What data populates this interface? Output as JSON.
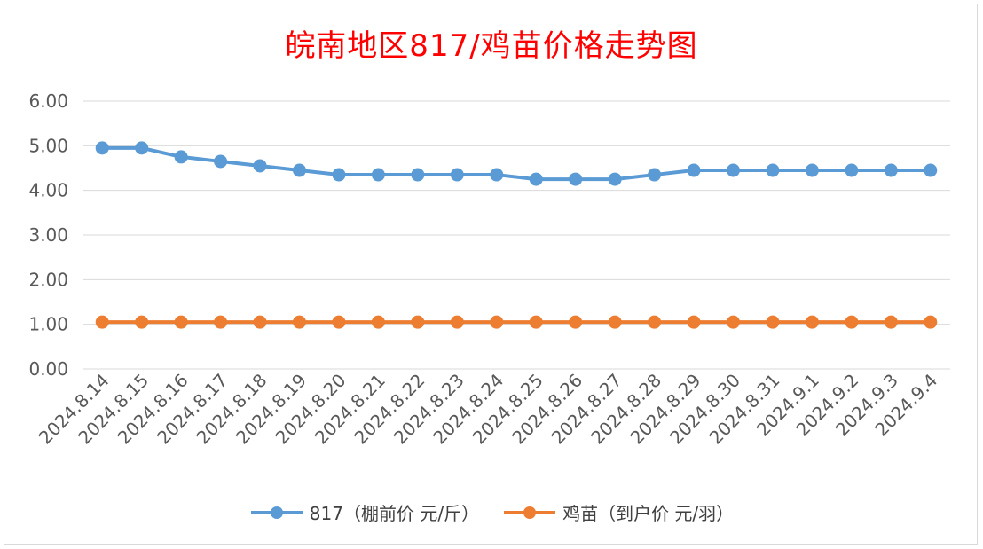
{
  "chart_data": {
    "type": "line",
    "title": "皖南地区817/鸡苗价格走势图",
    "categories": [
      "2024.8.14",
      "2024.8.15",
      "2024.8.16",
      "2024.8.17",
      "2024.8.18",
      "2024.8.19",
      "2024.8.20",
      "2024.8.21",
      "2024.8.22",
      "2024.8.23",
      "2024.8.24",
      "2024.8.25",
      "2024.8.26",
      "2024.8.27",
      "2024.8.28",
      "2024.8.29",
      "2024.8.30",
      "2024.8.31",
      "2024.9.1",
      "2024.9.2",
      "2024.9.3",
      "2024.9.4"
    ],
    "yticks": [
      "0.00",
      "1.00",
      "2.00",
      "3.00",
      "4.00",
      "5.00",
      "6.00"
    ],
    "ylim": [
      0,
      6
    ],
    "grid": true,
    "legend_position": "bottom",
    "series": [
      {
        "name": "817（棚前价 元/斤）",
        "color": "#5b9bd5",
        "values": [
          4.95,
          4.95,
          4.75,
          4.65,
          4.55,
          4.45,
          4.35,
          4.35,
          4.35,
          4.35,
          4.35,
          4.25,
          4.25,
          4.25,
          4.35,
          4.45,
          4.45,
          4.45,
          4.45,
          4.45,
          4.45,
          4.45
        ]
      },
      {
        "name": "鸡苗（到户价 元/羽）",
        "color": "#ed7d31",
        "values": [
          1.05,
          1.05,
          1.05,
          1.05,
          1.05,
          1.05,
          1.05,
          1.05,
          1.05,
          1.05,
          1.05,
          1.05,
          1.05,
          1.05,
          1.05,
          1.05,
          1.05,
          1.05,
          1.05,
          1.05,
          1.05,
          1.05
        ]
      }
    ]
  }
}
